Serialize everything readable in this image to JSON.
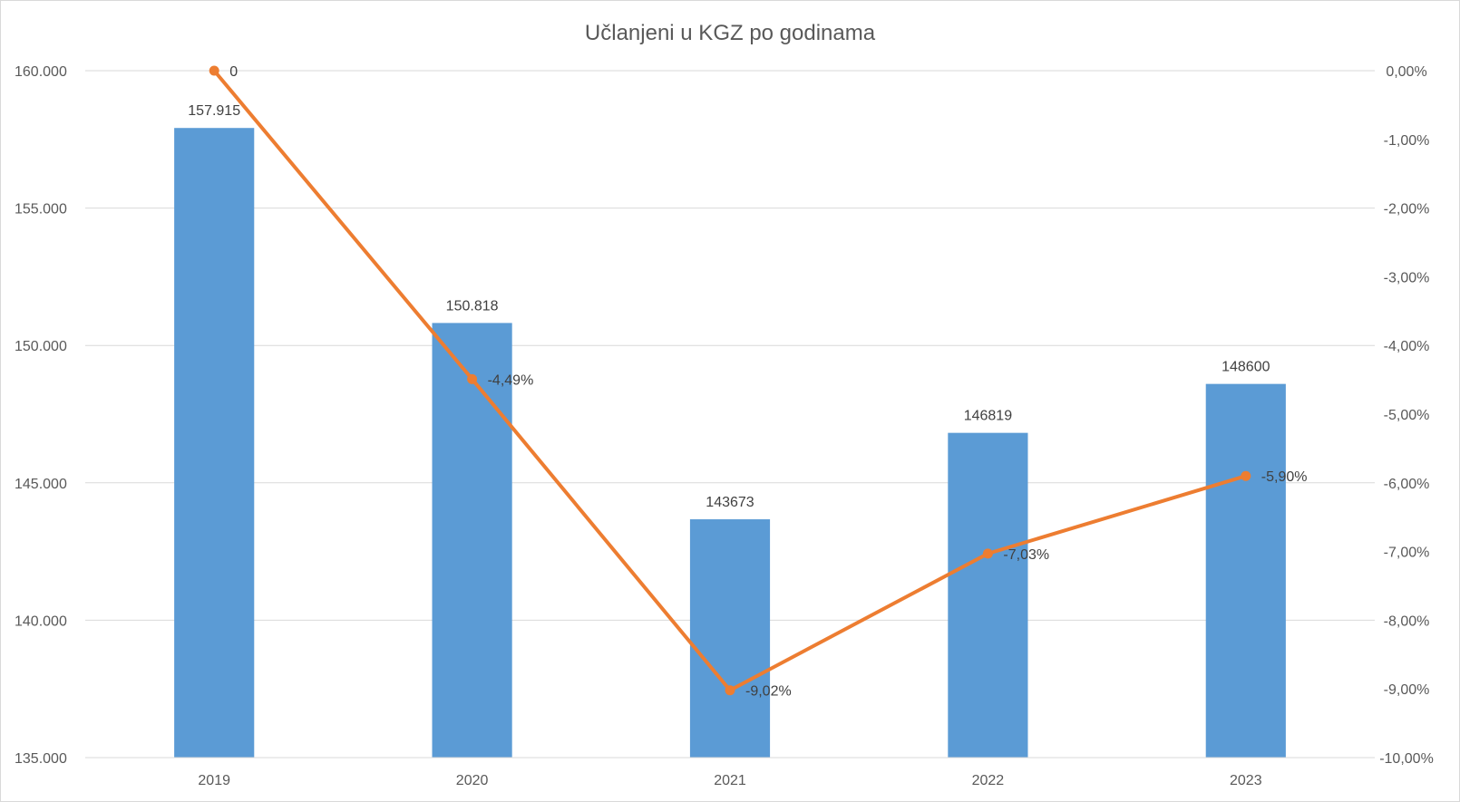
{
  "chart_data": {
    "type": "bar",
    "title": "Učlanjeni u KGZ po godinama",
    "categories": [
      "2019",
      "2020",
      "2021",
      "2022",
      "2023"
    ],
    "series": [
      {
        "type": "bar",
        "axis": "left",
        "values": [
          157915,
          150818,
          143673,
          146819,
          148600
        ],
        "data_labels": [
          "157.915",
          "150.818",
          "143673",
          "146819",
          "148600"
        ],
        "color": "#5b9bd5"
      },
      {
        "type": "line",
        "axis": "right",
        "values": [
          0,
          -4.49,
          -9.02,
          -7.03,
          -5.9
        ],
        "data_labels": [
          "0",
          "-4,49%",
          "-9,02%",
          "-7,03%",
          "-5,90%"
        ],
        "color": "#ed7d31"
      }
    ],
    "y_left": {
      "lim": [
        135000,
        160000
      ],
      "ticks": [
        135000,
        140000,
        145000,
        150000,
        155000,
        160000
      ],
      "tick_labels": [
        "135.000",
        "140.000",
        "145.000",
        "150.000",
        "155.000",
        "160.000"
      ]
    },
    "y_right": {
      "lim": [
        -10,
        0
      ],
      "ticks": [
        0,
        -1,
        -2,
        -3,
        -4,
        -5,
        -6,
        -7,
        -8,
        -9,
        -10
      ],
      "tick_labels": [
        "0,00%",
        "-1,00%",
        "-2,00%",
        "-3,00%",
        "-4,00%",
        "-5,00%",
        "-6,00%",
        "-7,00%",
        "-8,00%",
        "-9,00%",
        "-10,00%"
      ]
    },
    "grid": true,
    "legend": "none",
    "colors": {
      "bar": "#5b9bd5",
      "line": "#ed7d31",
      "grid": "#d9d9d9",
      "text": "#595959"
    }
  }
}
